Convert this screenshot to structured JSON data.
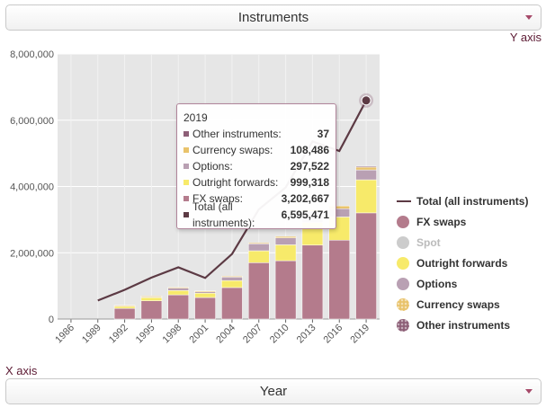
{
  "selectors": {
    "series_select": "Instruments",
    "x_select": "Year"
  },
  "axis_captions": {
    "y": "Y axis",
    "x": "X axis"
  },
  "colors": {
    "fx_swaps": "#b47b8c",
    "spot": "#cccccc",
    "outright_forwards": "#f7ea6a",
    "options": "#b9a0b3",
    "currency_swaps": "#e9c36b",
    "other_instruments": "#8d5f77",
    "total_line": "#5c3a44",
    "accent": "#a64a6a"
  },
  "legend": [
    {
      "key": "total",
      "label": "Total (all instruments)",
      "type": "line",
      "color": "#5c3a44",
      "enabled": true
    },
    {
      "key": "fx_swaps",
      "label": "FX swaps",
      "type": "circle",
      "color": "#b47b8c",
      "enabled": true
    },
    {
      "key": "spot",
      "label": "Spot",
      "type": "circle",
      "color": "#cccccc",
      "enabled": false
    },
    {
      "key": "outright_forwards",
      "label": "Outright forwards",
      "type": "circle",
      "color": "#f7ea6a",
      "enabled": true
    },
    {
      "key": "options",
      "label": "Options",
      "type": "circle",
      "color": "#b9a0b3",
      "enabled": true
    },
    {
      "key": "currency_swaps",
      "label": "Currency swaps",
      "type": "circle",
      "color": "#e9c36b",
      "enabled": true
    },
    {
      "key": "other_instruments",
      "label": "Other instruments",
      "type": "circle",
      "color": "#8d5f77",
      "enabled": true
    }
  ],
  "tooltip": {
    "year": "2019",
    "rows": [
      {
        "label": "Other instruments:",
        "value": "37",
        "color": "#8d5f77"
      },
      {
        "label": "Currency swaps:",
        "value": "108,486",
        "color": "#e9c36b"
      },
      {
        "label": "Options:",
        "value": "297,522",
        "color": "#b9a0b3"
      },
      {
        "label": "Outright forwards:",
        "value": "999,318",
        "color": "#f7ea6a"
      },
      {
        "label": "FX swaps:",
        "value": "3,202,667",
        "color": "#b47b8c"
      },
      {
        "label": "Total (all instruments):",
        "value": "6,595,471",
        "color": "#5c3a44"
      }
    ]
  },
  "chart_data": {
    "type": "bar",
    "categories": [
      "1986",
      "1989",
      "1992",
      "1995",
      "1998",
      "2001",
      "2004",
      "2007",
      "2010",
      "2013",
      "2016",
      "2019"
    ],
    "ylim": [
      0,
      8000000
    ],
    "yticks": [
      "0",
      "2,000,000",
      "4,000,000",
      "6,000,000",
      "8,000,000"
    ],
    "ytick_values": [
      0,
      2000000,
      4000000,
      6000000,
      8000000
    ],
    "stacked": true,
    "series": [
      {
        "name": "FX swaps",
        "key": "fx_swaps",
        "values": [
          null,
          null,
          320000,
          550000,
          730000,
          650000,
          950000,
          1700000,
          1760000,
          2230000,
          2380000,
          3202667
        ]
      },
      {
        "name": "Outright forwards",
        "key": "outright_forwards",
        "values": [
          null,
          null,
          60000,
          100000,
          130000,
          130000,
          210000,
          360000,
          480000,
          680000,
          700000,
          999318
        ]
      },
      {
        "name": "Options",
        "key": "options",
        "values": [
          null,
          null,
          30000,
          40000,
          90000,
          60000,
          110000,
          210000,
          210000,
          340000,
          250000,
          297522
        ]
      },
      {
        "name": "Currency swaps",
        "key": "currency_swaps",
        "values": [
          null,
          null,
          4000,
          4000,
          10000,
          7000,
          21000,
          31000,
          43000,
          54000,
          82000,
          108486
        ]
      },
      {
        "name": "Other instruments",
        "key": "other_instruments",
        "values": [
          null,
          null,
          0,
          0,
          0,
          0,
          0,
          0,
          0,
          0,
          0,
          37
        ]
      }
    ],
    "line_series": {
      "name": "Total (all instruments)",
      "key": "total",
      "values": [
        null,
        560000,
        880000,
        1250000,
        1560000,
        1240000,
        1960000,
        3310000,
        3970000,
        5360000,
        5070000,
        6595471
      ]
    },
    "highlighted_category": "2019"
  }
}
